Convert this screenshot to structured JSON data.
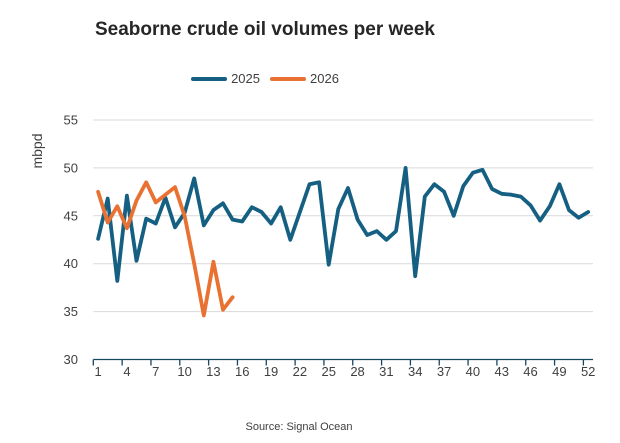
{
  "title": "Seaborne crude oil volumes per week",
  "ylabel": "mbpd",
  "source": "Source: Signal Ocean",
  "legend": [
    {
      "label": "2025",
      "color": "#156082"
    },
    {
      "label": "2026",
      "color": "#E97132"
    }
  ],
  "colors": {
    "grid": "#D9D9D9",
    "axis": "#17465F",
    "tick_text": "#404040"
  },
  "chart_data": {
    "type": "line",
    "title": "Seaborne crude oil volumes per week",
    "xlabel": "",
    "ylabel": "mbpd",
    "x_tick_labels": [
      1,
      4,
      7,
      10,
      13,
      16,
      19,
      22,
      25,
      28,
      31,
      34,
      37,
      40,
      43,
      46,
      49,
      52
    ],
    "x_range_weeks": [
      1,
      52
    ],
    "ylim": [
      30,
      55
    ],
    "yticks": [
      30,
      35,
      40,
      45,
      50,
      55
    ],
    "grid": true,
    "legend_position": "top",
    "series": [
      {
        "name": "2025",
        "color": "#156082",
        "x": [
          1,
          2,
          3,
          4,
          5,
          6,
          7,
          8,
          9,
          10,
          11,
          12,
          13,
          14,
          15,
          16,
          17,
          18,
          19,
          20,
          21,
          22,
          23,
          24,
          25,
          26,
          27,
          28,
          29,
          30,
          31,
          32,
          33,
          34,
          35,
          36,
          37,
          38,
          39,
          40,
          41,
          42,
          43,
          44,
          45,
          46,
          47,
          48,
          49,
          50,
          51,
          52
        ],
        "values": [
          42.6,
          46.8,
          38.2,
          47.1,
          40.3,
          44.7,
          44.2,
          46.9,
          43.8,
          45.3,
          48.9,
          44.0,
          45.6,
          46.3,
          44.6,
          44.4,
          45.9,
          45.4,
          44.2,
          45.9,
          42.5,
          45.4,
          48.3,
          48.5,
          39.9,
          45.7,
          47.9,
          44.6,
          43.0,
          43.4,
          42.5,
          43.4,
          50.0,
          38.7,
          47.0,
          48.3,
          47.5,
          45.0,
          48.1,
          49.5,
          49.8,
          47.8,
          47.3,
          47.2,
          47.0,
          46.1,
          44.5,
          46.0,
          48.3,
          45.6,
          44.8,
          45.4
        ]
      },
      {
        "name": "2026",
        "color": "#E97132",
        "x": [
          1,
          2,
          3,
          4,
          5,
          6,
          7,
          8,
          9,
          10,
          11,
          12,
          13,
          14,
          15
        ],
        "values": [
          47.5,
          44.3,
          46.0,
          43.7,
          46.6,
          48.5,
          46.4,
          47.2,
          48.0,
          45.0,
          40.0,
          34.6,
          40.2,
          35.2,
          36.5
        ]
      }
    ]
  }
}
